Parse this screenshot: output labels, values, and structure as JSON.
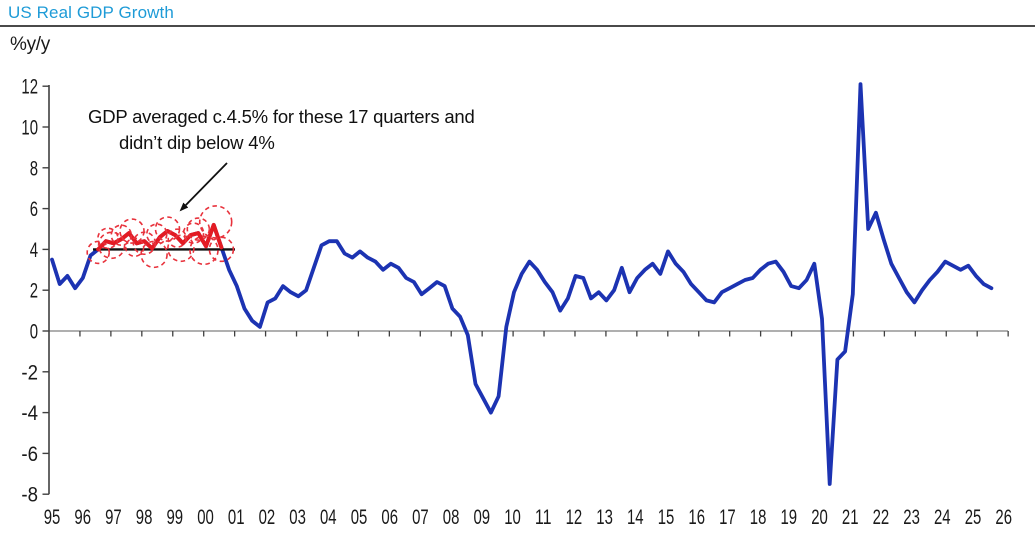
{
  "title": "US Real GDP Growth",
  "axis_unit_label": "%y/y",
  "annotation": {
    "line1": "GDP averaged c.4.5% for these 17 quarters and",
    "line2": "didn’t dip below 4%"
  },
  "colors": {
    "title": "#1E9BD7",
    "gdp_line": "#1C33B2",
    "highlight": "#E31B23",
    "highlight_circles": "#E8323C",
    "average_line": "#111111",
    "zero_line": "#7F7F7F",
    "axis": "#404040",
    "tick_text": "#1a1a1a"
  },
  "chart_data": {
    "type": "line",
    "title": "US Real GDP Growth",
    "ylabel": "%y/y",
    "ylim": [
      -8,
      12
    ],
    "ytick_step": 2,
    "grid": "zero-line-only",
    "legend_position": "none",
    "x_axis_years": [
      1995,
      2026
    ],
    "x_tick_labels": [
      "95",
      "96",
      "97",
      "98",
      "99",
      "00",
      "01",
      "02",
      "03",
      "04",
      "05",
      "06",
      "07",
      "08",
      "09",
      "10",
      "11",
      "12",
      "13",
      "14",
      "15",
      "16",
      "17",
      "18",
      "19",
      "20",
      "21",
      "22",
      "23",
      "24",
      "25",
      "26"
    ],
    "series": [
      {
        "name": "US Real GDP Growth, % y/y (quarterly)",
        "start_quarter": "1995Q1",
        "end_quarter": "2025Q3",
        "values": [
          3.5,
          2.3,
          2.7,
          2.1,
          2.6,
          3.7,
          4.0,
          4.4,
          4.3,
          4.5,
          4.8,
          4.3,
          4.4,
          4.05,
          4.6,
          4.9,
          4.7,
          4.3,
          4.7,
          4.8,
          4.15,
          5.2,
          4.1,
          3.0,
          2.2,
          1.1,
          0.5,
          0.2,
          1.4,
          1.6,
          2.2,
          1.9,
          1.7,
          2.0,
          3.1,
          4.2,
          4.4,
          4.4,
          3.8,
          3.6,
          3.9,
          3.6,
          3.4,
          3.0,
          3.3,
          3.1,
          2.6,
          2.4,
          1.8,
          2.1,
          2.4,
          2.2,
          1.1,
          0.7,
          -0.2,
          -2.6,
          -3.3,
          -4.0,
          -3.2,
          0.2,
          1.9,
          2.8,
          3.4,
          3.0,
          2.4,
          1.9,
          1.0,
          1.6,
          2.7,
          2.6,
          1.6,
          1.9,
          1.5,
          2.0,
          3.1,
          1.9,
          2.6,
          3.0,
          3.3,
          2.8,
          3.9,
          3.3,
          2.9,
          2.3,
          1.9,
          1.5,
          1.4,
          1.9,
          2.1,
          2.3,
          2.5,
          2.6,
          3.0,
          3.3,
          3.4,
          2.9,
          2.2,
          2.1,
          2.5,
          3.3,
          0.6,
          -7.5,
          -1.4,
          -1.0,
          1.8,
          12.1,
          5.0,
          5.8,
          4.5,
          3.3,
          2.6,
          1.9,
          1.4,
          2.0,
          2.5,
          2.9,
          3.4,
          3.2,
          3.0,
          3.2,
          2.7,
          2.3,
          2.1
        ]
      }
    ],
    "highlight_segment": {
      "name": "17 quarters that averaged c.4.5% and never dipped below 4%",
      "start_quarter": "1996Q3",
      "end_quarter": "2000Q3",
      "start_index": 6,
      "end_index": 22,
      "quarters": 17,
      "average_pct": 4.5
    },
    "average_reference_line_value": 4.0
  }
}
